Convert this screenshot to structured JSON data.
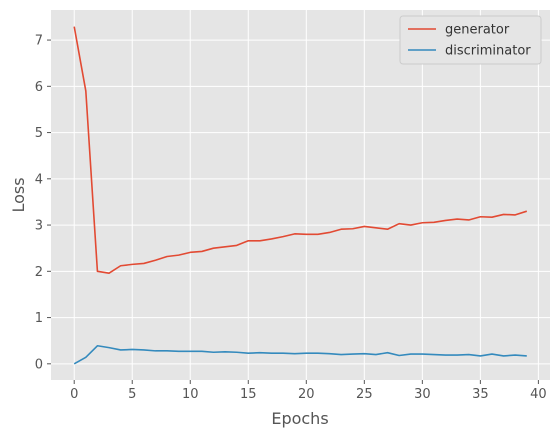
{
  "chart_data": {
    "type": "line",
    "xlabel": "Epochs",
    "ylabel": "Loss",
    "xlim": [
      -2.0,
      41.0
    ],
    "ylim": [
      -0.35,
      7.65
    ],
    "xticks": [
      0,
      5,
      10,
      15,
      20,
      25,
      30,
      35,
      40
    ],
    "yticks": [
      0,
      1,
      2,
      3,
      4,
      5,
      6,
      7
    ],
    "grid": true,
    "legend": "top-right",
    "x": [
      0,
      1,
      2,
      3,
      4,
      5,
      6,
      7,
      8,
      9,
      10,
      11,
      12,
      13,
      14,
      15,
      16,
      17,
      18,
      19,
      20,
      21,
      22,
      23,
      24,
      25,
      26,
      27,
      28,
      29,
      30,
      31,
      32,
      33,
      34,
      35,
      36,
      37,
      38,
      39
    ],
    "series": [
      {
        "name": "generator",
        "color": "#e24a33",
        "values": [
          7.29,
          5.9,
          2.0,
          1.96,
          2.12,
          2.15,
          2.17,
          2.24,
          2.32,
          2.35,
          2.41,
          2.43,
          2.5,
          2.53,
          2.56,
          2.66,
          2.66,
          2.7,
          2.75,
          2.81,
          2.8,
          2.8,
          2.84,
          2.91,
          2.92,
          2.97,
          2.94,
          2.91,
          3.03,
          3.0,
          3.05,
          3.06,
          3.1,
          3.13,
          3.11,
          3.18,
          3.17,
          3.23,
          3.22,
          3.3
        ]
      },
      {
        "name": "discriminator",
        "color": "#348abd",
        "values": [
          0.0,
          0.14,
          0.39,
          0.35,
          0.3,
          0.31,
          0.3,
          0.28,
          0.28,
          0.27,
          0.27,
          0.27,
          0.25,
          0.26,
          0.25,
          0.23,
          0.24,
          0.23,
          0.23,
          0.22,
          0.23,
          0.23,
          0.22,
          0.2,
          0.21,
          0.22,
          0.2,
          0.24,
          0.18,
          0.21,
          0.21,
          0.2,
          0.19,
          0.19,
          0.2,
          0.17,
          0.21,
          0.17,
          0.19,
          0.17
        ]
      }
    ]
  }
}
